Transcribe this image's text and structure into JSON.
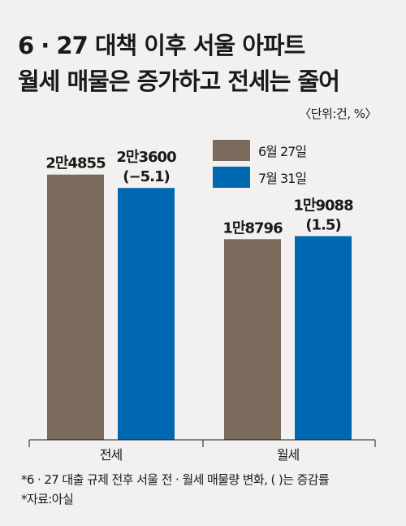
{
  "title_line1": "6 · 27 대책 이후 서울 아파트",
  "title_line2": "월세 매물은 증가하고 전세는 줄어",
  "unit": "〈단위:건, %〉",
  "chart_data": {
    "type": "bar",
    "categories": [
      "전세",
      "월세"
    ],
    "series": [
      {
        "name": "6월 27일",
        "values": [
          24855,
          18796
        ],
        "labels": [
          "2만4855",
          "1만8796"
        ],
        "color": "#7b6b5c"
      },
      {
        "name": "7월 31일",
        "values": [
          23600,
          19088
        ],
        "labels": [
          "2만3600",
          "1만9088"
        ],
        "changes": [
          "(−5.1)",
          "(1.5)"
        ],
        "color": "#0067b1"
      }
    ],
    "ylim": [
      0,
      30000
    ],
    "legend": "top-right",
    "grid": false
  },
  "notes": [
    "*6 · 27 대출 규제 전후 서울 전 · 월세 매물량 변화, ( )는 증감률",
    "*자료:아실"
  ]
}
